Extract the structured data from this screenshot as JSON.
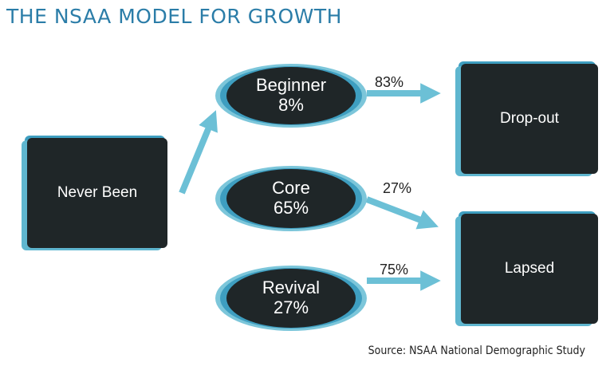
{
  "title": "THE NSAA MODEL FOR GROWTH",
  "nodes": {
    "never_been": "Never Been",
    "beginner": {
      "name": "Beginner",
      "pct": "8%"
    },
    "core": {
      "name": "Core",
      "pct": "65%"
    },
    "revival": {
      "name": "Revival",
      "pct": "27%"
    },
    "drop_out": "Drop-out",
    "lapsed": "Lapsed"
  },
  "edges": {
    "beginner_to_dropout": "83%",
    "core_to_lapsed": "27%",
    "revival_to_lapsed": "75%"
  },
  "source": "Source: NSAA National Demographic Study",
  "colors": {
    "title": "#2b7da8",
    "box": "#1f2628",
    "arrow": "#6cc0d6",
    "halo_light": "#7cc6da",
    "halo_dark": "#3e9ec0"
  }
}
